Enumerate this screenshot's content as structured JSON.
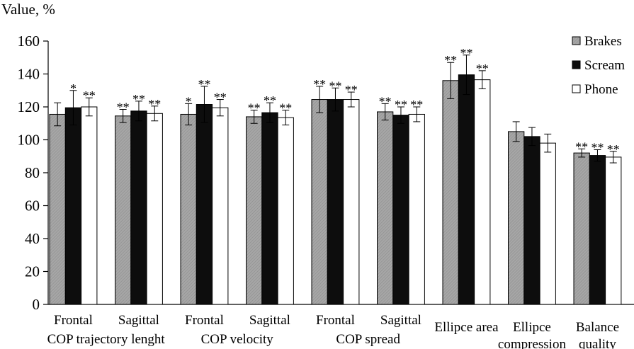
{
  "chart_data": {
    "type": "bar",
    "ylabel": "Value, %",
    "ylim": [
      0,
      160
    ],
    "yticks": [
      0,
      20,
      40,
      60,
      80,
      100,
      120,
      140,
      160
    ],
    "grid": false,
    "legend_position": "top-right",
    "categories": [
      "Frontal",
      "Sagittal",
      "Frontal",
      "Sagittal",
      "Frontal",
      "Sagittal",
      "Ellipce area",
      "Ellipce\ncompression",
      "Balance\nquality"
    ],
    "groups": [
      {
        "label": "COP trajectory lenght",
        "categories": [
          0,
          1
        ]
      },
      {
        "label": "COP velocity",
        "categories": [
          2,
          3
        ]
      },
      {
        "label": "COP spread",
        "categories": [
          4,
          5
        ]
      }
    ],
    "series": [
      {
        "name": "Brakes",
        "color": "#a6a6a6",
        "values": [
          115.5,
          114.5,
          115.5,
          114,
          124.5,
          117,
          136,
          105,
          92
        ],
        "errors": [
          7,
          4,
          6.5,
          4,
          8,
          5,
          11,
          6,
          2.5
        ],
        "annotations": [
          "",
          "**",
          "*",
          "**",
          "**",
          "**",
          "**",
          "",
          "**"
        ]
      },
      {
        "name": "Scream",
        "color": "#0d0d0d",
        "values": [
          119.5,
          117.5,
          121.5,
          116.5,
          124.5,
          115,
          139.5,
          102,
          90.5
        ],
        "errors": [
          10.5,
          6,
          11,
          6,
          7,
          5,
          12,
          5.5,
          3.5
        ],
        "annotations": [
          "*",
          "**",
          "**",
          "**",
          "**",
          "**",
          "**",
          "",
          "**"
        ]
      },
      {
        "name": "Phone",
        "color": "#ffffff",
        "values": [
          120,
          116,
          119.5,
          113.5,
          124.5,
          115.5,
          136.5,
          98,
          89.5
        ],
        "errors": [
          5.5,
          4.5,
          5,
          4.5,
          4.5,
          4.5,
          5.5,
          5.5,
          3.5
        ],
        "annotations": [
          "**",
          "**",
          "**",
          "**",
          "**",
          "**",
          "**",
          "",
          "**"
        ]
      }
    ]
  }
}
